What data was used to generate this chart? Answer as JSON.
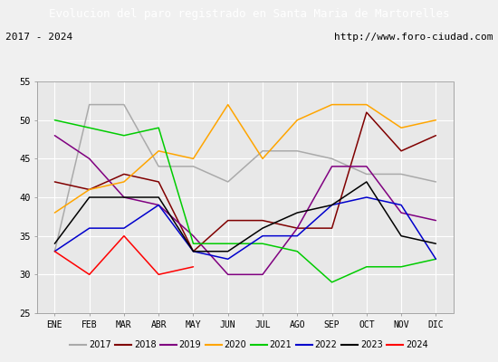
{
  "title": "Evolucion del paro registrado en Santa Maria de Martorelles",
  "subtitle_left": "2017 - 2024",
  "subtitle_right": "http://www.foro-ciudad.com",
  "months": [
    "ENE",
    "FEB",
    "MAR",
    "ABR",
    "MAY",
    "JUN",
    "JUL",
    "AGO",
    "SEP",
    "OCT",
    "NOV",
    "DIC"
  ],
  "ylim": [
    25,
    55
  ],
  "yticks": [
    25,
    30,
    35,
    40,
    45,
    50,
    55
  ],
  "series": {
    "2017": {
      "color": "#aaaaaa",
      "data": [
        33,
        52,
        52,
        44,
        44,
        42,
        46,
        46,
        45,
        43,
        43,
        42
      ]
    },
    "2018": {
      "color": "#800000",
      "data": [
        42,
        41,
        43,
        42,
        33,
        37,
        37,
        36,
        36,
        51,
        46,
        48
      ]
    },
    "2019": {
      "color": "#800080",
      "data": [
        48,
        45,
        40,
        39,
        35,
        30,
        30,
        36,
        44,
        44,
        38,
        37
      ]
    },
    "2020": {
      "color": "#ffa500",
      "data": [
        38,
        41,
        42,
        46,
        45,
        52,
        45,
        50,
        52,
        52,
        49,
        50
      ]
    },
    "2021": {
      "color": "#00cc00",
      "data": [
        50,
        49,
        48,
        49,
        34,
        34,
        34,
        33,
        29,
        31,
        31,
        32
      ]
    },
    "2022": {
      "color": "#0000cc",
      "data": [
        33,
        36,
        36,
        39,
        33,
        32,
        35,
        35,
        39,
        40,
        39,
        32
      ]
    },
    "2023": {
      "color": "#000000",
      "data": [
        34,
        40,
        40,
        40,
        33,
        33,
        36,
        38,
        39,
        42,
        35,
        34
      ]
    },
    "2024": {
      "color": "#ff0000",
      "data": [
        33,
        30,
        35,
        30,
        31,
        null,
        null,
        null,
        null,
        null,
        null,
        null
      ]
    }
  },
  "background_color": "#f0f0f0",
  "plot_bg": "#e8e8e8",
  "title_bg": "#3a6bc9",
  "title_color": "white",
  "subtitle_bg": "#d8d8d8",
  "grid_color": "white",
  "legend_bg": "#f0f0f0",
  "border_color": "#999999"
}
